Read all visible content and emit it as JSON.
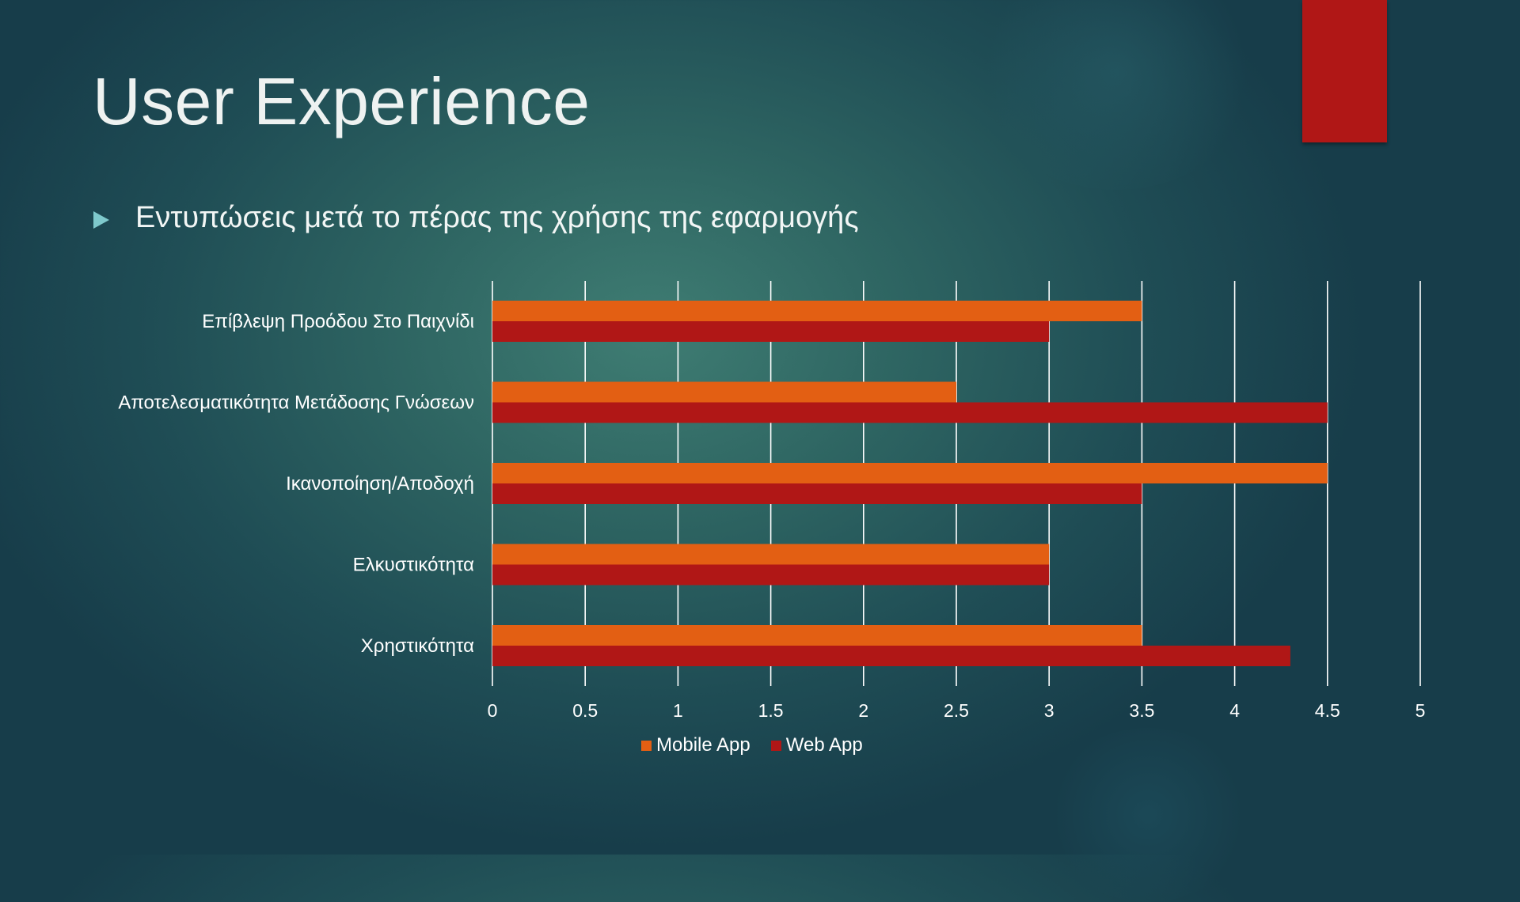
{
  "slide": {
    "title": "User Experience",
    "bullet": "Εντυπώσεις μετά το πέρας της χρήσης της εφαρμογής"
  },
  "colors": {
    "accent_bar": "#b01716",
    "bullet_arrow": "#7ec9cc",
    "mobile": "#e35f13",
    "web": "#b01716",
    "grid": "#ffffff"
  },
  "chart_data": {
    "type": "bar",
    "orientation": "horizontal",
    "categories": [
      "Επίβλεψη Προόδου Στο Παιχνίδι",
      "Αποτελεσματικότητα Μετάδοσης Γνώσεων",
      "Ικανοποίηση/Αποδοχή",
      "Ελκυστικότητα",
      "Χρηστικότητα"
    ],
    "series": [
      {
        "name": "Mobile App",
        "values": [
          3.5,
          2.5,
          4.5,
          3.0,
          3.5
        ]
      },
      {
        "name": "Web App",
        "values": [
          3.0,
          4.5,
          3.5,
          3.0,
          4.3
        ]
      }
    ],
    "xlim": [
      0,
      5
    ],
    "ticks": [
      "0",
      "0.5",
      "1",
      "1.5",
      "2",
      "2.5",
      "3",
      "3.5",
      "4",
      "4.5",
      "5"
    ],
    "grid": "vertical",
    "legend": "bottom"
  }
}
